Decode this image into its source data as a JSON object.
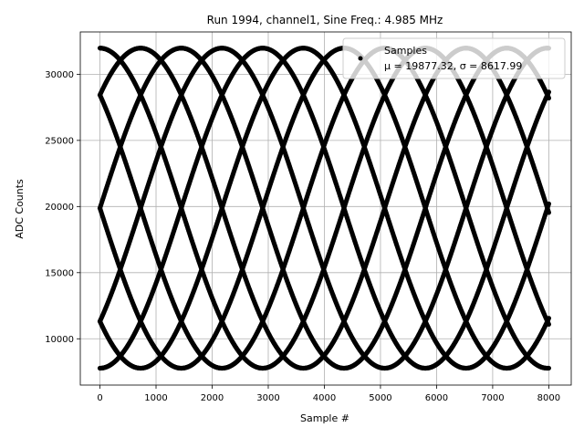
{
  "chart_data": {
    "type": "scatter",
    "title": "Run 1994, channel1, Sine Freq.: 4.985 MHz",
    "xlabel": "Sample #",
    "ylabel": "ADC Counts",
    "xlim": [
      -350,
      8400
    ],
    "ylim": [
      6500,
      33200
    ],
    "xticks": [
      0,
      1000,
      2000,
      3000,
      4000,
      5000,
      6000,
      7000,
      8000
    ],
    "yticks": [
      10000,
      15000,
      20000,
      25000,
      30000
    ],
    "grid": true,
    "legend": {
      "placement": "top-right",
      "entries": [
        {
          "label": "Samples",
          "sublabel": "μ = 19877.32, σ = 8617.99",
          "marker": "dot"
        }
      ]
    },
    "series": [
      {
        "name": "Samples",
        "color": "#000000",
        "marker": "dot",
        "x_range": [
          0,
          8000
        ],
        "sample_step": 10,
        "waveform": {
          "kind": "sine",
          "mean": 19877.32,
          "amplitude": 12100,
          "traces": 8,
          "trace_period_samples": 5800
        }
      }
    ]
  }
}
